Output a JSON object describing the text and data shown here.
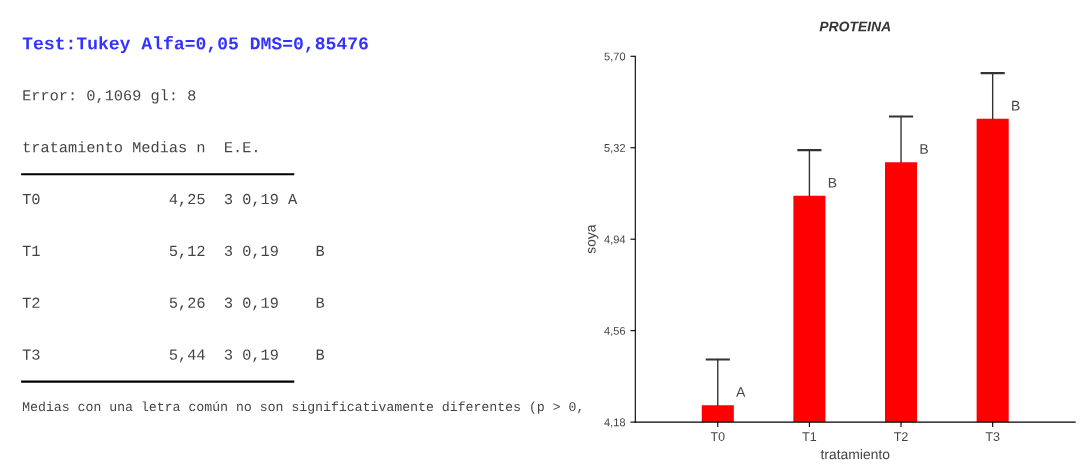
{
  "chart_data": [
    {
      "type": "other",
      "title": "Test:Tukey Alfa=0,05 DMS=0,85476",
      "annotations": [
        "Error: 0,1069 gl: 8",
        "tratamiento Medias n  E.E.",
        "T0              4,25  3 0,19 A",
        "T1              5,12  3 0,19    B",
        "T2              5,26  3 0,19    B",
        "T3              5,44  3 0,19    B",
        "Medias con una letra común no son significativamente diferentes (p > 0,"
      ]
    },
    {
      "type": "bar",
      "title": "PROTEINA",
      "xlabel": "tratamiento",
      "ylabel": "soya",
      "categories": [
        "T0",
        "T1",
        "T2",
        "T3"
      ],
      "values": [
        4.25,
        5.12,
        5.26,
        5.44
      ],
      "color": "#ff0000",
      "errors": [
        [
          4.25,
          4.44
        ],
        [
          5.12,
          5.31
        ],
        [
          5.26,
          5.45
        ],
        [
          5.44,
          5.63
        ]
      ],
      "ylim": [
        4.18,
        5.7
      ],
      "yticks": [
        {
          "value": 4.18,
          "label": "4,18"
        },
        {
          "value": 4.56,
          "label": "4,56"
        },
        {
          "value": 4.94,
          "label": "4,94"
        },
        {
          "value": 5.32,
          "label": "5,32"
        },
        {
          "value": 5.7,
          "label": "5,70"
        }
      ],
      "grid": false,
      "annotations": [
        {
          "text": "A",
          "x": "T0",
          "y": 4.25
        },
        {
          "text": "B",
          "x": "T1",
          "y": 5.12
        },
        {
          "text": "B",
          "x": "T2",
          "y": 5.26
        },
        {
          "text": "B",
          "x": "T3",
          "y": 5.44
        }
      ]
    }
  ]
}
